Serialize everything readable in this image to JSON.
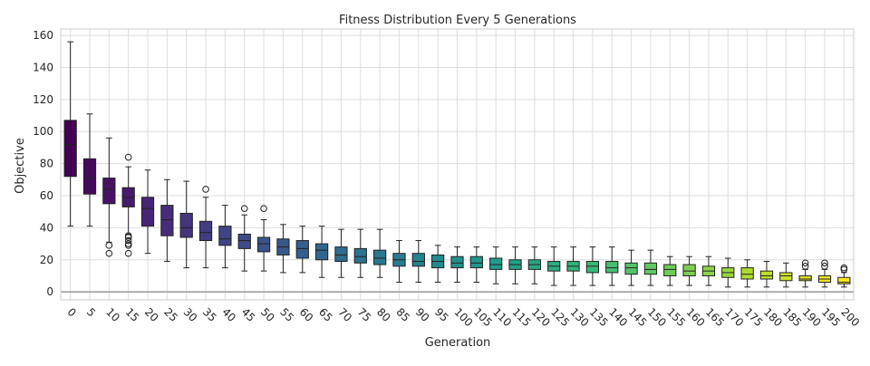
{
  "chart_data": {
    "type": "box",
    "title": "Fitness Distribution Every 5 Generations",
    "xlabel": "Generation",
    "ylabel": "Objective",
    "ylim": [
      -5,
      164
    ],
    "yticks": [
      0,
      20,
      40,
      60,
      80,
      100,
      120,
      140,
      160
    ],
    "grid": true,
    "reference_line_y": 0,
    "reference_line_color": "#a0a0a0",
    "colormap": "viridis",
    "categories": [
      "0",
      "5",
      "10",
      "15",
      "20",
      "25",
      "30",
      "35",
      "40",
      "45",
      "50",
      "55",
      "60",
      "65",
      "70",
      "75",
      "80",
      "85",
      "90",
      "95",
      "100",
      "105",
      "110",
      "115",
      "120",
      "125",
      "130",
      "135",
      "140",
      "145",
      "150",
      "155",
      "160",
      "165",
      "170",
      "175",
      "180",
      "185",
      "190",
      "195",
      "200"
    ],
    "boxes": [
      {
        "whislo": 41,
        "q1": 72,
        "med": 92,
        "q3": 107,
        "whishi": 156,
        "fliers": []
      },
      {
        "whislo": 41,
        "q1": 61,
        "med": 71,
        "q3": 83,
        "whishi": 111,
        "fliers": []
      },
      {
        "whislo": 31,
        "q1": 55,
        "med": 64,
        "q3": 71,
        "whishi": 96,
        "fliers": [
          29,
          24
        ]
      },
      {
        "whislo": 36,
        "q1": 53,
        "med": 59,
        "q3": 65,
        "whishi": 78,
        "fliers": [
          84,
          35,
          34,
          32,
          30,
          29,
          24
        ]
      },
      {
        "whislo": 24,
        "q1": 41,
        "med": 52,
        "q3": 59,
        "whishi": 76,
        "fliers": []
      },
      {
        "whislo": 19,
        "q1": 35,
        "med": 45,
        "q3": 54,
        "whishi": 70,
        "fliers": []
      },
      {
        "whislo": 15,
        "q1": 34,
        "med": 40,
        "q3": 49,
        "whishi": 69,
        "fliers": []
      },
      {
        "whislo": 15,
        "q1": 32,
        "med": 37,
        "q3": 44,
        "whishi": 59,
        "fliers": [
          64
        ]
      },
      {
        "whislo": 15,
        "q1": 29,
        "med": 33,
        "q3": 41,
        "whishi": 54,
        "fliers": []
      },
      {
        "whislo": 13,
        "q1": 27,
        "med": 32,
        "q3": 36,
        "whishi": 48,
        "fliers": [
          52
        ]
      },
      {
        "whislo": 13,
        "q1": 25,
        "med": 30,
        "q3": 34,
        "whishi": 45,
        "fliers": [
          52
        ]
      },
      {
        "whislo": 12,
        "q1": 23,
        "med": 28,
        "q3": 33,
        "whishi": 42,
        "fliers": []
      },
      {
        "whislo": 12,
        "q1": 21,
        "med": 27,
        "q3": 32,
        "whishi": 41,
        "fliers": []
      },
      {
        "whislo": 9,
        "q1": 20,
        "med": 26,
        "q3": 30,
        "whishi": 41,
        "fliers": []
      },
      {
        "whislo": 9,
        "q1": 19,
        "med": 23,
        "q3": 28,
        "whishi": 39,
        "fliers": []
      },
      {
        "whislo": 9,
        "q1": 18,
        "med": 22,
        "q3": 27,
        "whishi": 39,
        "fliers": []
      },
      {
        "whislo": 9,
        "q1": 17,
        "med": 21,
        "q3": 26,
        "whishi": 39,
        "fliers": []
      },
      {
        "whislo": 6,
        "q1": 16,
        "med": 20,
        "q3": 24,
        "whishi": 32,
        "fliers": []
      },
      {
        "whislo": 6,
        "q1": 16,
        "med": 19,
        "q3": 24,
        "whishi": 32,
        "fliers": []
      },
      {
        "whislo": 6,
        "q1": 15,
        "med": 19,
        "q3": 23,
        "whishi": 29,
        "fliers": []
      },
      {
        "whislo": 6,
        "q1": 15,
        "med": 18,
        "q3": 22,
        "whishi": 28,
        "fliers": []
      },
      {
        "whislo": 6,
        "q1": 15,
        "med": 18,
        "q3": 22,
        "whishi": 28,
        "fliers": []
      },
      {
        "whislo": 5,
        "q1": 14,
        "med": 17,
        "q3": 21,
        "whishi": 28,
        "fliers": []
      },
      {
        "whislo": 5,
        "q1": 14,
        "med": 17,
        "q3": 20,
        "whishi": 28,
        "fliers": []
      },
      {
        "whislo": 5,
        "q1": 14,
        "med": 17,
        "q3": 20,
        "whishi": 28,
        "fliers": []
      },
      {
        "whislo": 4,
        "q1": 13,
        "med": 16,
        "q3": 19,
        "whishi": 28,
        "fliers": []
      },
      {
        "whislo": 4,
        "q1": 13,
        "med": 16,
        "q3": 19,
        "whishi": 28,
        "fliers": []
      },
      {
        "whislo": 4,
        "q1": 12,
        "med": 16,
        "q3": 19,
        "whishi": 28,
        "fliers": []
      },
      {
        "whislo": 4,
        "q1": 12,
        "med": 15,
        "q3": 19,
        "whishi": 28,
        "fliers": []
      },
      {
        "whislo": 4,
        "q1": 11,
        "med": 15,
        "q3": 18,
        "whishi": 26,
        "fliers": []
      },
      {
        "whislo": 4,
        "q1": 11,
        "med": 14,
        "q3": 18,
        "whishi": 26,
        "fliers": []
      },
      {
        "whislo": 4,
        "q1": 10,
        "med": 14,
        "q3": 17,
        "whishi": 22,
        "fliers": []
      },
      {
        "whislo": 4,
        "q1": 10,
        "med": 13,
        "q3": 17,
        "whishi": 22,
        "fliers": []
      },
      {
        "whislo": 4,
        "q1": 10,
        "med": 13,
        "q3": 16,
        "whishi": 22,
        "fliers": []
      },
      {
        "whislo": 3,
        "q1": 9,
        "med": 12,
        "q3": 15,
        "whishi": 21,
        "fliers": []
      },
      {
        "whislo": 3,
        "q1": 8,
        "med": 11,
        "q3": 15,
        "whishi": 20,
        "fliers": []
      },
      {
        "whislo": 3,
        "q1": 8,
        "med": 10,
        "q3": 13,
        "whishi": 19,
        "fliers": []
      },
      {
        "whislo": 3,
        "q1": 7,
        "med": 10,
        "q3": 12,
        "whishi": 18,
        "fliers": []
      },
      {
        "whislo": 3,
        "q1": 7,
        "med": 8,
        "q3": 10,
        "whishi": 14,
        "fliers": [
          18,
          16
        ]
      },
      {
        "whislo": 3,
        "q1": 6,
        "med": 8,
        "q3": 10,
        "whishi": 14,
        "fliers": [
          18,
          16
        ]
      },
      {
        "whislo": 3,
        "q1": 5,
        "med": 6,
        "q3": 9,
        "whishi": 12,
        "fliers": [
          15,
          14
        ]
      }
    ]
  }
}
